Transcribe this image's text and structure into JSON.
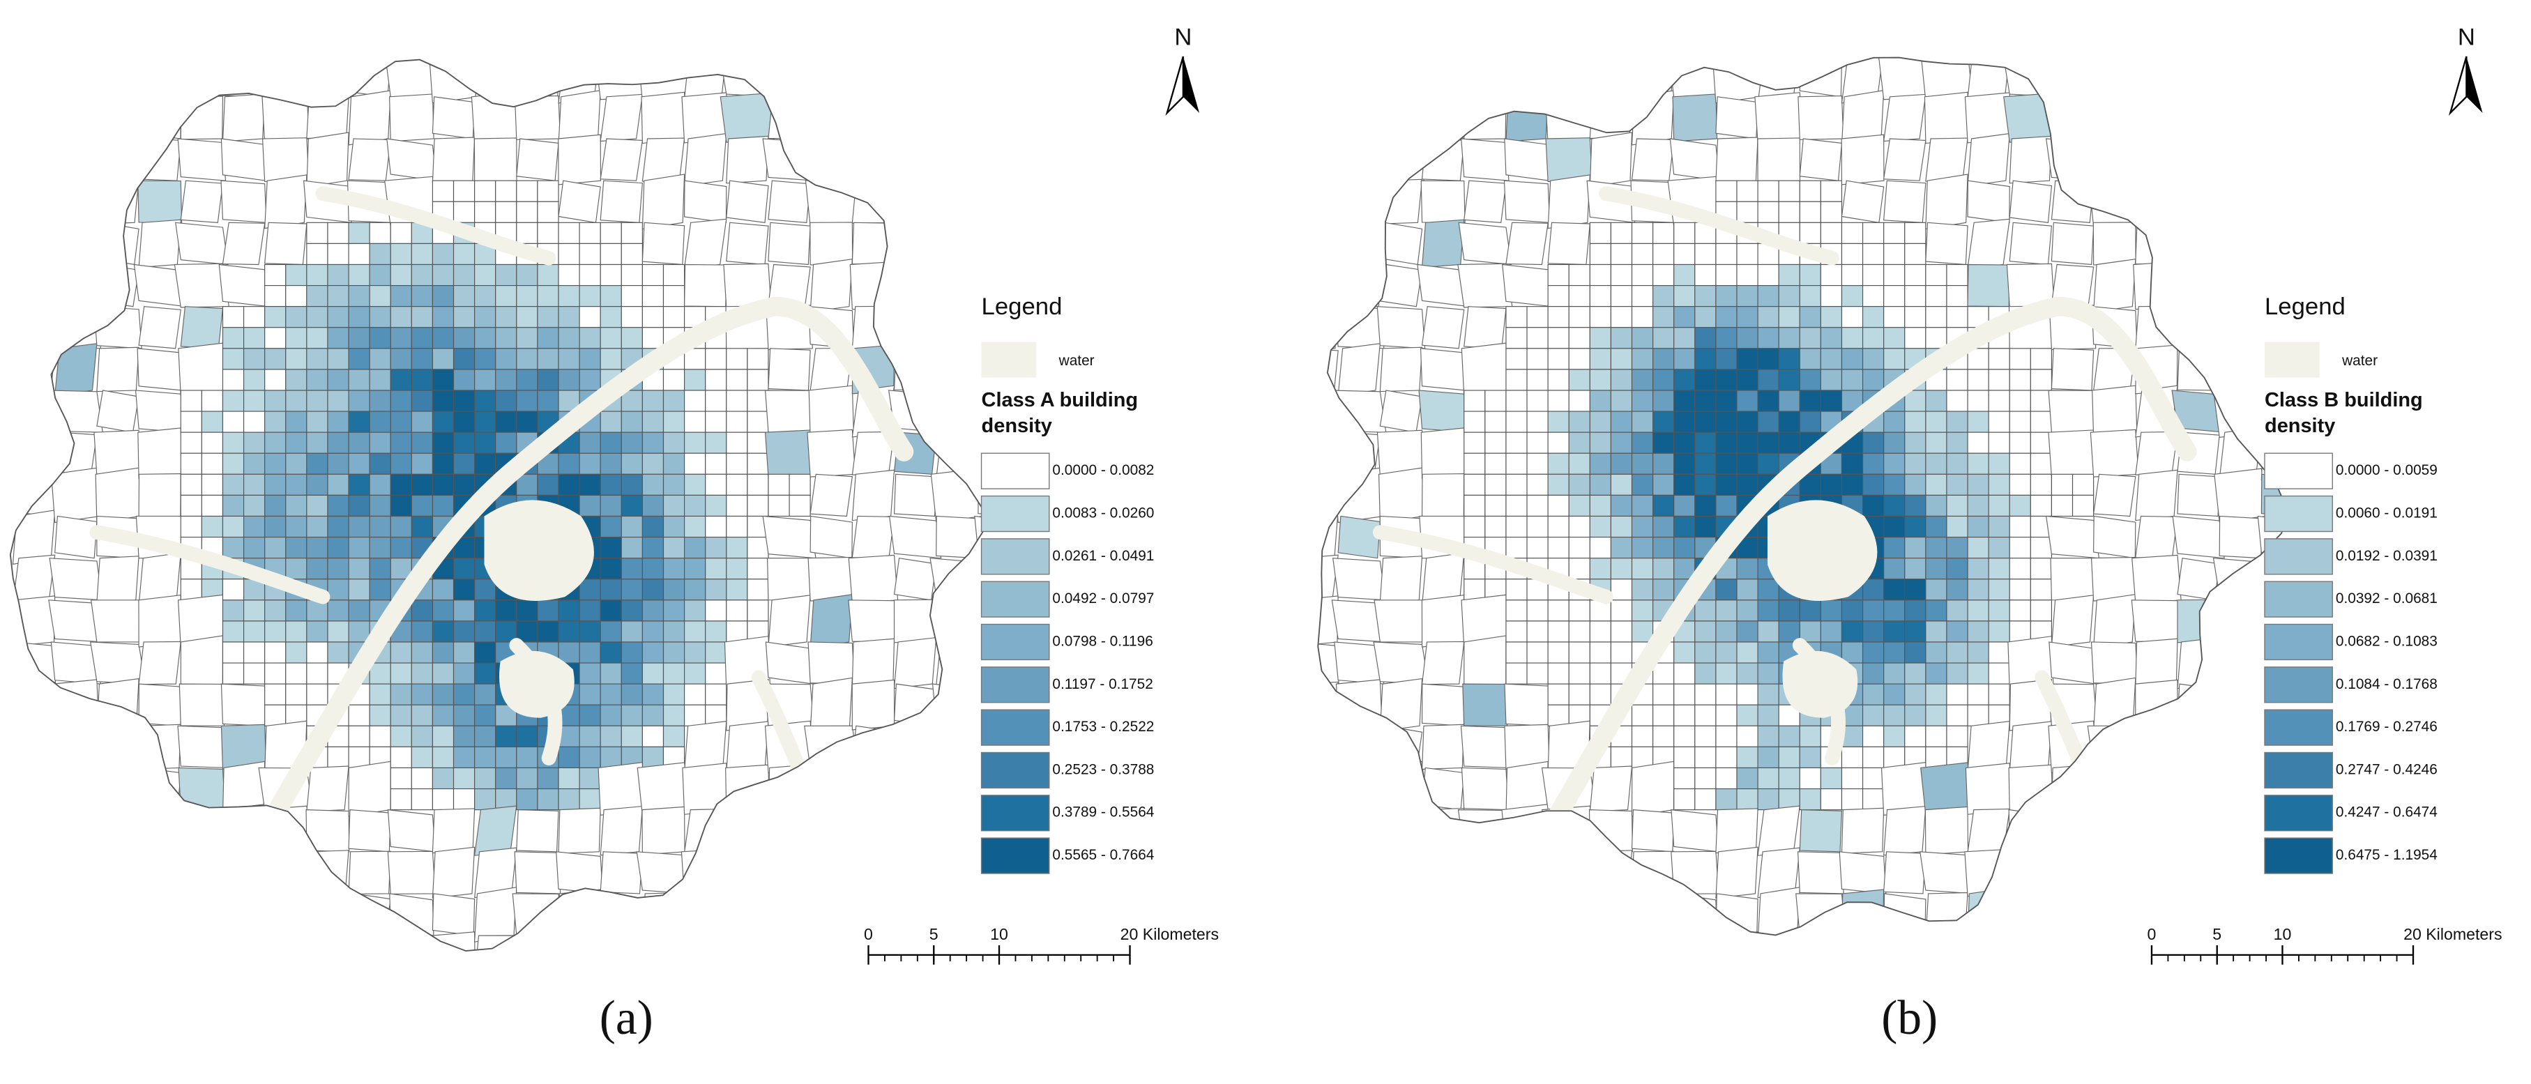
{
  "panels": [
    {
      "caption": "(a)",
      "north": "N",
      "legend_title": "Legend",
      "water_label": "water",
      "water_color": "#f3f2e8",
      "class_title": "Class A building density",
      "classes": [
        {
          "label": "0.0000 - 0.0082",
          "color": "#ffffff"
        },
        {
          "label": "0.0083 - 0.0260",
          "color": "#bcd9e2"
        },
        {
          "label": "0.0261 - 0.0491",
          "color": "#a7c9d7"
        },
        {
          "label": "0.0492 - 0.0797",
          "color": "#93bcd1"
        },
        {
          "label": "0.0798 - 0.1196",
          "color": "#7eaec9"
        },
        {
          "label": "0.1197 - 0.1752",
          "color": "#6a9fbf"
        },
        {
          "label": "0.1753 - 0.2522",
          "color": "#5391b8"
        },
        {
          "label": "0.2523 - 0.3788",
          "color": "#3d7fab"
        },
        {
          "label": "0.3789 - 0.5564",
          "color": "#1f72a0"
        },
        {
          "label": "0.5565 - 0.7664",
          "color": "#10608f"
        }
      ],
      "scale_ticks": [
        0,
        5,
        10,
        {
          "value": 20,
          "label": "20 Kilometers"
        }
      ]
    },
    {
      "caption": "(b)",
      "north": "N",
      "legend_title": "Legend",
      "water_label": "water",
      "water_color": "#f3f2e8",
      "class_title": "Class B building density",
      "classes": [
        {
          "label": "0.0000 - 0.0059",
          "color": "#ffffff"
        },
        {
          "label": "0.0060 - 0.0191",
          "color": "#bcd9e2"
        },
        {
          "label": "0.0192 - 0.0391",
          "color": "#a7c9d7"
        },
        {
          "label": "0.0392 - 0.0681",
          "color": "#93bcd1"
        },
        {
          "label": "0.0682 - 0.1083",
          "color": "#7eaec9"
        },
        {
          "label": "0.1084 - 0.1768",
          "color": "#6a9fbf"
        },
        {
          "label": "0.1769 - 0.2746",
          "color": "#5391b8"
        },
        {
          "label": "0.2747 - 0.4246",
          "color": "#3d7fab"
        },
        {
          "label": "0.4247 - 0.6474",
          "color": "#1f72a0"
        },
        {
          "label": "0.6475 - 1.1954",
          "color": "#10608f"
        }
      ],
      "scale_ticks": [
        0,
        5,
        10,
        {
          "value": 20,
          "label": "20 Kilometers"
        }
      ]
    }
  ]
}
